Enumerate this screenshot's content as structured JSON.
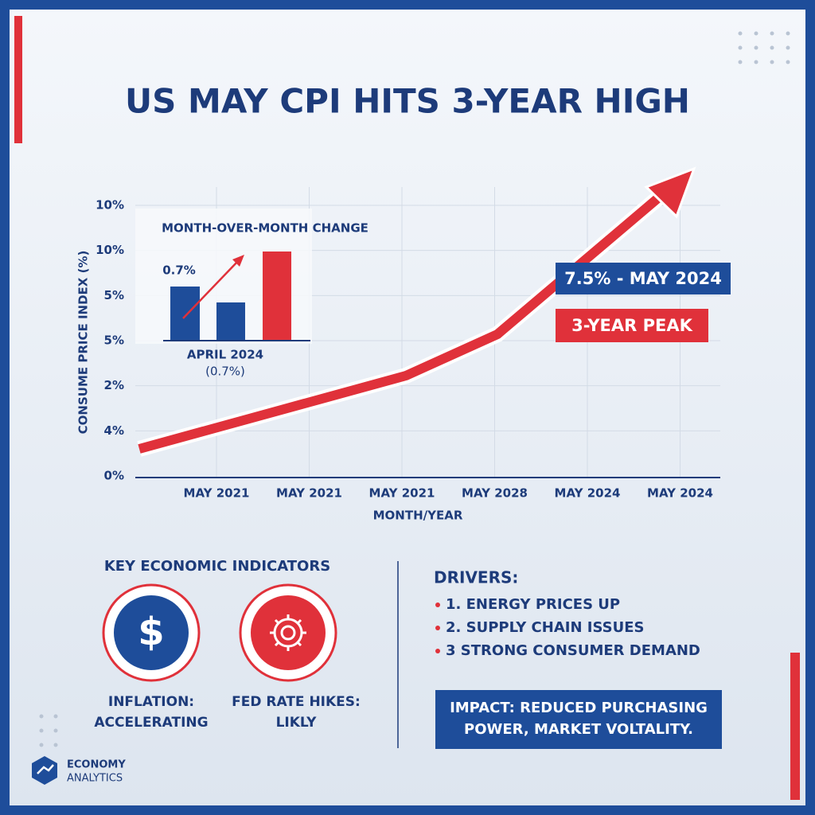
{
  "title": "US MAY CPI HITS 3-YEAR HIGH",
  "main_chart": {
    "y_axis_title": "CONSUME PRICE INDEX (%)",
    "y_axis_labels": [
      "10%",
      "10%",
      "5%",
      "5%",
      "2%",
      "4%",
      "0%"
    ],
    "x_axis_title": "MONTH/YEAR",
    "x_axis_labels": [
      "MAY 2021",
      "MAY 2021",
      "MAY 2021",
      "MAY 2028",
      "MAY 2024",
      "MAY 2024"
    ],
    "callout": "7.5% - MAY 2024",
    "peak_label": "3-YEAR PEAK"
  },
  "inset": {
    "title": "MONTH-OVER-MONTH CHANGE",
    "bar_label": "0.7%",
    "caption_line1": "APRIL 2024",
    "caption_line2": "(0.7%)"
  },
  "indicators": {
    "heading": "KEY ECONOMIC INDICATORS",
    "items": [
      {
        "line1": "INFLATION:",
        "line2": "ACCELERATING"
      },
      {
        "line1": "FED RATE HIKES:",
        "line2": "LIKLY"
      }
    ]
  },
  "drivers": {
    "heading": "DRIVERS:",
    "items": [
      "1. ENERGY PRICES UP",
      "2. SUPPLY CHAIN ISSUES",
      "3 STRONG CONSUMER DEMAND"
    ]
  },
  "impact": {
    "line1": "IMPACT: REDUCED PURCHASING",
    "line2": "POWER, MARKET VOLTALITY."
  },
  "brand": {
    "line1": "ECONOMY",
    "line2": "ANALYTICS"
  }
}
